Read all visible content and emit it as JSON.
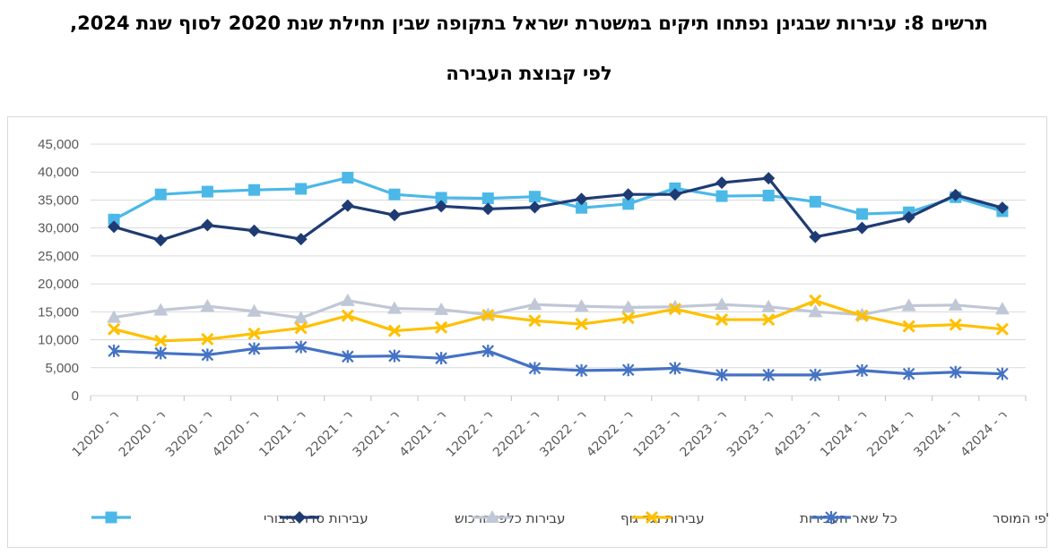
{
  "title": {
    "line1": "תרשים 8: עבירות שבגינן נפתחו תיקים במשטרת ישראל בתקופה שבין תחילת שנת 2020 לסוף שנת 2024,",
    "line2": "לפי קבוצת העבירה"
  },
  "chart_data": {
    "type": "line",
    "categories": [
      "1 - רבעון 2020",
      "2 - רבעון 2020",
      "3 - רבעון 2020",
      "4 - רבעון 2020",
      "1 - רבעון 2021",
      "2 - רבעון 2021",
      "3 - רבעון 2021",
      "4 - רבעון 2021",
      "1 - רבעון 2022",
      "2 - רבעון 2022",
      "3 - רבעון 2022",
      "4 - רבעון 2022",
      "1 - רבעון 2023",
      "2 - רבעון 2023",
      "3 - רבעון 2023",
      "4 - רבעון 2023",
      "1 - רבעון 2024",
      "2 - רבעון 2024",
      "3 - רבעון 2024",
      "4 - רבעון 2024"
    ],
    "category_labels": [
      "1ר - 2020",
      "2ר - 2020",
      "3ר - 2020",
      "4ר - 2020",
      "1ר - 2021",
      "2ר - 2021",
      "3ר - 2021",
      "4ר - 2021",
      "1ר - 2022",
      "2ר - 2022",
      "3ר - 2022",
      "4ר - 2022",
      "1ר - 2023",
      "2ר - 2023",
      "3ר - 2023",
      "4ר - 2023",
      "1ר - 2024",
      "2ר - 2024",
      "3ר - 2024",
      "4ר - 2024"
    ],
    "ylim": [
      0,
      45000
    ],
    "yticks": [
      "0",
      "5,000",
      "10,000",
      "15,000",
      "20,000",
      "25,000",
      "30,000",
      "35,000",
      "40,000",
      "45,000"
    ],
    "grid": true,
    "legend_position": "bottom",
    "series": [
      {
        "name": "עבירות סדר ציבורי",
        "color": "#4bb8e8",
        "marker": "square",
        "values": [
          31500,
          36000,
          36500,
          36800,
          37000,
          39000,
          36000,
          35400,
          35300,
          35600,
          33600,
          34300,
          37100,
          35700,
          35800,
          34700,
          32500,
          32800,
          35500,
          33000
        ]
      },
      {
        "name": "עבירות כלפי הרכוש",
        "color": "#1f3b73",
        "marker": "diamond",
        "values": [
          30200,
          27800,
          30500,
          29500,
          28000,
          34000,
          32300,
          33900,
          33400,
          33700,
          35200,
          36000,
          36000,
          38100,
          38900,
          28400,
          30000,
          31900,
          35900,
          33600
        ]
      },
      {
        "name": "עבירות נגד גוף",
        "color": "#c0c7d6",
        "marker": "triangle",
        "values": [
          14000,
          15300,
          16000,
          15100,
          13900,
          17000,
          15600,
          15400,
          14500,
          16300,
          16000,
          15800,
          15900,
          16300,
          15900,
          15000,
          14500,
          16100,
          16200,
          15500
        ]
      },
      {
        "name": "כל שאר העבירות",
        "color": "#ffc000",
        "marker": "x",
        "values": [
          11900,
          9800,
          10100,
          11100,
          12100,
          14300,
          11600,
          12200,
          14400,
          13400,
          12800,
          13900,
          15500,
          13600,
          13600,
          17000,
          14300,
          12400,
          12700,
          11900
        ]
      },
      {
        "name": "עבירות כלפי המוסר",
        "color": "#4472c4",
        "marker": "star",
        "values": [
          8000,
          7600,
          7300,
          8400,
          8700,
          7000,
          7100,
          6700,
          8000,
          4900,
          4500,
          4600,
          4900,
          3700,
          3700,
          3700,
          4500,
          3900,
          4200,
          3900
        ]
      }
    ]
  }
}
